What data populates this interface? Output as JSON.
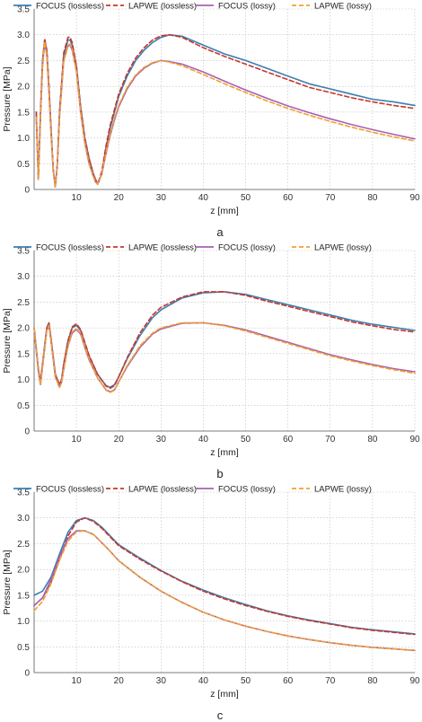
{
  "colors": {
    "focus_lossless": "#3b7fb0",
    "lapwe_lossless": "#c8372d",
    "focus_lossy": "#a860b5",
    "lapwe_lossy": "#f0a030",
    "grid": "#bdbdbd",
    "axis": "#555555"
  },
  "chart_data": [
    {
      "type": "line",
      "panel_label": "a",
      "xlabel": "z [mm]",
      "ylabel": "Pressure [MPa]",
      "xlim": [
        0,
        90
      ],
      "ylim": [
        0,
        3.5
      ],
      "xticks": [
        10,
        20,
        30,
        40,
        50,
        60,
        70,
        80,
        90
      ],
      "yticks": [
        0,
        0.5,
        1.0,
        1.5,
        2.0,
        2.5,
        3.0,
        3.5
      ],
      "grid": true,
      "legend_position": "top",
      "series": [
        {
          "name": "FOCUS (lossless)",
          "style": "solid",
          "color_key": "focus_lossless",
          "x": [
            0.5,
            1,
            1.5,
            2,
            2.5,
            3,
            3.5,
            4,
            4.5,
            5,
            5.5,
            6,
            7,
            8,
            8.5,
            9,
            10,
            11,
            12,
            13,
            14,
            14.5,
            15,
            16,
            17,
            18,
            19,
            20,
            22,
            24,
            26,
            28,
            30,
            32,
            35,
            40,
            45,
            50,
            55,
            60,
            65,
            70,
            75,
            80,
            85,
            90
          ],
          "y": [
            1.5,
            0.2,
            1.5,
            2.5,
            2.9,
            2.7,
            2.0,
            1.2,
            0.4,
            0.05,
            0.5,
            1.5,
            2.6,
            2.9,
            2.9,
            2.8,
            2.4,
            1.6,
            1.0,
            0.6,
            0.3,
            0.2,
            0.1,
            0.3,
            0.8,
            1.2,
            1.5,
            1.8,
            2.2,
            2.5,
            2.7,
            2.85,
            2.95,
            3.0,
            2.97,
            2.8,
            2.63,
            2.5,
            2.35,
            2.2,
            2.05,
            1.95,
            1.85,
            1.75,
            1.7,
            1.63
          ]
        },
        {
          "name": "LAPWE (lossless)",
          "style": "dashed",
          "color_key": "lapwe_lossless",
          "x": [
            0.5,
            1,
            1.5,
            2,
            2.5,
            3,
            3.5,
            4,
            4.5,
            5,
            5.5,
            6,
            7,
            8,
            8.5,
            9,
            10,
            11,
            12,
            13,
            14,
            14.5,
            15,
            16,
            17,
            18,
            19,
            20,
            22,
            24,
            26,
            28,
            30,
            32,
            35,
            40,
            45,
            50,
            55,
            60,
            65,
            70,
            75,
            80,
            85,
            90
          ],
          "y": [
            1.5,
            0.2,
            1.5,
            2.5,
            2.92,
            2.7,
            2.0,
            1.2,
            0.4,
            0.05,
            0.5,
            1.5,
            2.65,
            2.95,
            2.95,
            2.85,
            2.4,
            1.6,
            1.0,
            0.6,
            0.3,
            0.2,
            0.1,
            0.35,
            0.85,
            1.25,
            1.55,
            1.85,
            2.25,
            2.55,
            2.75,
            2.9,
            2.98,
            3.0,
            2.95,
            2.75,
            2.58,
            2.43,
            2.28,
            2.13,
            1.98,
            1.88,
            1.78,
            1.7,
            1.63,
            1.57
          ]
        },
        {
          "name": "FOCUS (lossy)",
          "style": "solid",
          "color_key": "focus_lossy",
          "x": [
            0.5,
            1,
            1.5,
            2,
            2.5,
            3,
            3.5,
            4,
            4.5,
            5,
            5.5,
            6,
            7,
            8,
            8.5,
            9,
            10,
            11,
            12,
            13,
            14,
            14.5,
            15,
            16,
            17,
            18,
            19,
            20,
            22,
            24,
            26,
            28,
            30,
            32,
            35,
            40,
            45,
            50,
            55,
            60,
            65,
            70,
            75,
            80,
            85,
            90
          ],
          "y": [
            1.4,
            0.2,
            1.4,
            2.4,
            2.85,
            2.6,
            1.9,
            1.1,
            0.4,
            0.05,
            0.5,
            1.4,
            2.5,
            2.78,
            2.8,
            2.7,
            2.3,
            1.5,
            0.9,
            0.5,
            0.25,
            0.15,
            0.1,
            0.3,
            0.7,
            1.05,
            1.35,
            1.6,
            1.95,
            2.2,
            2.35,
            2.45,
            2.5,
            2.48,
            2.43,
            2.28,
            2.1,
            1.93,
            1.77,
            1.62,
            1.49,
            1.37,
            1.26,
            1.16,
            1.07,
            0.98
          ]
        },
        {
          "name": "LAPWE (lossy)",
          "style": "dashed",
          "color_key": "lapwe_lossy",
          "x": [
            0.5,
            1,
            1.5,
            2,
            2.5,
            3,
            3.5,
            4,
            4.5,
            5,
            5.5,
            6,
            7,
            8,
            8.5,
            9,
            10,
            11,
            12,
            13,
            14,
            14.5,
            15,
            16,
            17,
            18,
            19,
            20,
            22,
            24,
            26,
            28,
            30,
            32,
            35,
            40,
            45,
            50,
            55,
            60,
            65,
            70,
            75,
            80,
            85,
            90
          ],
          "y": [
            1.4,
            0.2,
            1.4,
            2.4,
            2.87,
            2.6,
            1.9,
            1.1,
            0.4,
            0.05,
            0.5,
            1.4,
            2.5,
            2.8,
            2.82,
            2.72,
            2.3,
            1.5,
            0.9,
            0.5,
            0.25,
            0.15,
            0.1,
            0.3,
            0.72,
            1.08,
            1.38,
            1.63,
            1.98,
            2.22,
            2.37,
            2.46,
            2.5,
            2.47,
            2.4,
            2.23,
            2.05,
            1.88,
            1.72,
            1.57,
            1.44,
            1.32,
            1.21,
            1.11,
            1.02,
            0.94
          ]
        }
      ]
    },
    {
      "type": "line",
      "panel_label": "b",
      "xlabel": "z [mm]",
      "ylabel": "Pressure [MPa]",
      "xlim": [
        0,
        90
      ],
      "ylim": [
        0,
        3.5
      ],
      "xticks": [
        10,
        20,
        30,
        40,
        50,
        60,
        70,
        80,
        90
      ],
      "yticks": [
        0,
        0.5,
        1.0,
        1.5,
        2.0,
        2.5,
        3.0,
        3.5
      ],
      "grid": true,
      "legend_position": "top",
      "series": [
        {
          "name": "FOCUS (lossless)",
          "style": "solid",
          "color_key": "focus_lossless",
          "x": [
            0,
            1,
            1.5,
            2,
            3,
            3.5,
            4,
            5,
            6,
            6.5,
            7,
            8,
            9,
            10,
            11,
            12,
            13,
            15,
            17,
            18,
            19,
            20,
            22,
            25,
            28,
            30,
            35,
            40,
            45,
            50,
            55,
            60,
            65,
            70,
            75,
            80,
            85,
            90
          ],
          "y": [
            2.0,
            1.2,
            0.95,
            1.3,
            2.0,
            2.1,
            1.8,
            1.1,
            0.9,
            1.0,
            1.3,
            1.75,
            2.0,
            2.05,
            1.95,
            1.7,
            1.45,
            1.1,
            0.88,
            0.85,
            0.9,
            1.05,
            1.4,
            1.85,
            2.2,
            2.35,
            2.58,
            2.68,
            2.7,
            2.65,
            2.55,
            2.45,
            2.35,
            2.25,
            2.15,
            2.07,
            2.01,
            1.95
          ]
        },
        {
          "name": "LAPWE (lossless)",
          "style": "dashed",
          "color_key": "lapwe_lossless",
          "x": [
            0,
            1,
            1.5,
            2,
            3,
            3.5,
            4,
            5,
            6,
            6.5,
            7,
            8,
            9,
            10,
            11,
            12,
            13,
            15,
            17,
            18,
            19,
            20,
            22,
            25,
            28,
            30,
            35,
            40,
            45,
            50,
            55,
            60,
            65,
            70,
            75,
            80,
            85,
            90
          ],
          "y": [
            2.0,
            1.2,
            0.95,
            1.3,
            2.0,
            2.1,
            1.8,
            1.1,
            0.9,
            1.0,
            1.3,
            1.75,
            2.02,
            2.08,
            1.97,
            1.72,
            1.47,
            1.1,
            0.87,
            0.83,
            0.88,
            1.05,
            1.42,
            1.9,
            2.25,
            2.4,
            2.6,
            2.7,
            2.7,
            2.63,
            2.52,
            2.42,
            2.32,
            2.22,
            2.12,
            2.04,
            1.97,
            1.92
          ]
        },
        {
          "name": "FOCUS (lossy)",
          "style": "solid",
          "color_key": "focus_lossy",
          "x": [
            0,
            1,
            1.5,
            2,
            3,
            3.5,
            4,
            5,
            6,
            6.5,
            7,
            8,
            9,
            10,
            11,
            12,
            13,
            15,
            17,
            18,
            19,
            20,
            22,
            25,
            28,
            30,
            35,
            40,
            45,
            50,
            55,
            60,
            65,
            70,
            75,
            80,
            85,
            90
          ],
          "y": [
            2.0,
            1.15,
            0.9,
            1.25,
            1.95,
            2.05,
            1.75,
            1.05,
            0.85,
            0.95,
            1.2,
            1.65,
            1.9,
            1.97,
            1.88,
            1.62,
            1.38,
            1.03,
            0.8,
            0.76,
            0.8,
            0.95,
            1.25,
            1.62,
            1.88,
            1.98,
            2.09,
            2.1,
            2.05,
            1.96,
            1.84,
            1.72,
            1.6,
            1.48,
            1.38,
            1.29,
            1.21,
            1.15
          ]
        },
        {
          "name": "LAPWE (lossy)",
          "style": "dashed",
          "color_key": "lapwe_lossy",
          "x": [
            0,
            1,
            1.5,
            2,
            3,
            3.5,
            4,
            5,
            6,
            6.5,
            7,
            8,
            9,
            10,
            11,
            12,
            13,
            15,
            17,
            18,
            19,
            20,
            22,
            25,
            28,
            30,
            35,
            40,
            45,
            50,
            55,
            60,
            65,
            70,
            75,
            80,
            85,
            90
          ],
          "y": [
            2.0,
            1.15,
            0.9,
            1.25,
            1.95,
            2.05,
            1.75,
            1.05,
            0.85,
            0.95,
            1.2,
            1.65,
            1.92,
            1.99,
            1.9,
            1.64,
            1.4,
            1.03,
            0.79,
            0.75,
            0.79,
            0.95,
            1.27,
            1.65,
            1.9,
            2.0,
            2.1,
            2.1,
            2.04,
            1.94,
            1.82,
            1.7,
            1.58,
            1.46,
            1.36,
            1.27,
            1.19,
            1.12
          ]
        }
      ]
    },
    {
      "type": "line",
      "panel_label": "c",
      "xlabel": "z [mm]",
      "ylabel": "Pressure [MPa]",
      "xlim": [
        0,
        90
      ],
      "ylim": [
        0,
        3.5
      ],
      "xticks": [
        10,
        20,
        30,
        40,
        50,
        60,
        70,
        80,
        90
      ],
      "yticks": [
        0,
        0.5,
        1.0,
        1.5,
        2.0,
        2.5,
        3.0,
        3.5
      ],
      "grid": true,
      "legend_position": "top",
      "series": [
        {
          "name": "FOCUS (lossless)",
          "style": "solid",
          "color_key": "focus_lossless",
          "x": [
            0,
            2,
            4,
            6,
            8,
            10,
            12,
            14,
            16,
            18,
            20,
            25,
            30,
            35,
            40,
            45,
            50,
            55,
            60,
            65,
            70,
            75,
            80,
            85,
            90
          ],
          "y": [
            1.5,
            1.58,
            1.85,
            2.3,
            2.72,
            2.95,
            3.0,
            2.95,
            2.82,
            2.65,
            2.48,
            2.22,
            1.98,
            1.77,
            1.6,
            1.45,
            1.32,
            1.2,
            1.1,
            1.02,
            0.95,
            0.88,
            0.83,
            0.79,
            0.75
          ]
        },
        {
          "name": "LAPWE (lossless)",
          "style": "dashed",
          "color_key": "lapwe_lossless",
          "x": [
            0,
            2,
            4,
            6,
            8,
            10,
            12,
            14,
            16,
            18,
            20,
            25,
            30,
            35,
            40,
            45,
            50,
            55,
            60,
            65,
            70,
            75,
            80,
            85,
            90
          ],
          "y": [
            1.3,
            1.45,
            1.75,
            2.2,
            2.65,
            2.92,
            3.0,
            2.93,
            2.8,
            2.63,
            2.46,
            2.2,
            1.97,
            1.76,
            1.58,
            1.43,
            1.3,
            1.19,
            1.09,
            1.01,
            0.94,
            0.87,
            0.82,
            0.78,
            0.74
          ]
        },
        {
          "name": "FOCUS (lossy)",
          "style": "solid",
          "color_key": "focus_lossy",
          "x": [
            0,
            2,
            4,
            6,
            8,
            10,
            12,
            14,
            16,
            18,
            20,
            25,
            30,
            35,
            40,
            45,
            50,
            55,
            60,
            65,
            70,
            75,
            80,
            85,
            90
          ],
          "y": [
            1.3,
            1.45,
            1.8,
            2.25,
            2.6,
            2.75,
            2.75,
            2.68,
            2.52,
            2.35,
            2.17,
            1.85,
            1.58,
            1.36,
            1.17,
            1.02,
            0.9,
            0.8,
            0.71,
            0.64,
            0.58,
            0.53,
            0.49,
            0.46,
            0.43
          ]
        },
        {
          "name": "LAPWE (lossy)",
          "style": "dashed",
          "color_key": "lapwe_lossy",
          "x": [
            0,
            2,
            4,
            6,
            8,
            10,
            12,
            14,
            16,
            18,
            20,
            25,
            30,
            35,
            40,
            45,
            50,
            55,
            60,
            65,
            70,
            75,
            80,
            85,
            90
          ],
          "y": [
            1.2,
            1.38,
            1.72,
            2.18,
            2.55,
            2.73,
            2.75,
            2.68,
            2.52,
            2.35,
            2.17,
            1.85,
            1.58,
            1.36,
            1.17,
            1.02,
            0.9,
            0.8,
            0.71,
            0.64,
            0.58,
            0.53,
            0.49,
            0.46,
            0.43
          ]
        }
      ]
    }
  ]
}
